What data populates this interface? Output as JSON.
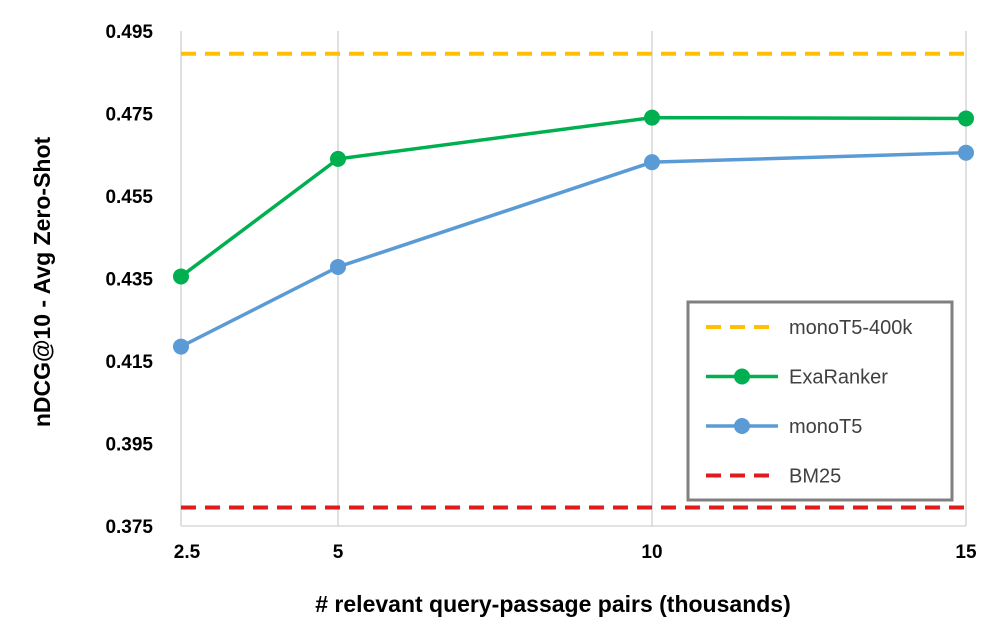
{
  "chart_data": {
    "type": "line",
    "title": "",
    "xlabel": "# relevant query-passage pairs (thousands)",
    "ylabel": "nDCG@10 - Avg Zero-Shot",
    "x": [
      2.5,
      5,
      10,
      15
    ],
    "x_tick_labels": [
      "2.5",
      "5",
      "10",
      "15"
    ],
    "y_ticks": [
      0.375,
      0.395,
      0.415,
      0.435,
      0.455,
      0.475,
      0.495
    ],
    "y_tick_labels": [
      "0.375",
      "0.395",
      "0.415",
      "0.435",
      "0.455",
      "0.475",
      "0.495"
    ],
    "xlim": [
      2.5,
      15
    ],
    "ylim": [
      0.375,
      0.495
    ],
    "grid": "vertical",
    "legend_position": "bottom-right",
    "series": [
      {
        "name": "monoT5-400k",
        "style": "dashed",
        "markers": false,
        "color": "#FFC000",
        "values": [
          0.4895,
          0.4895,
          0.4895,
          0.4895
        ]
      },
      {
        "name": "ExaRanker",
        "style": "solid",
        "markers": true,
        "color": "#00B050",
        "values": [
          0.4355,
          0.464,
          0.474,
          0.4738
        ]
      },
      {
        "name": "monoT5",
        "style": "solid",
        "markers": true,
        "color": "#5B9BD5",
        "values": [
          0.4185,
          0.4378,
          0.4632,
          0.4655
        ]
      },
      {
        "name": "BM25",
        "style": "dashed",
        "markers": false,
        "color": "#E31A1C",
        "values": [
          0.3795,
          0.3795,
          0.3795,
          0.3795
        ]
      }
    ]
  }
}
